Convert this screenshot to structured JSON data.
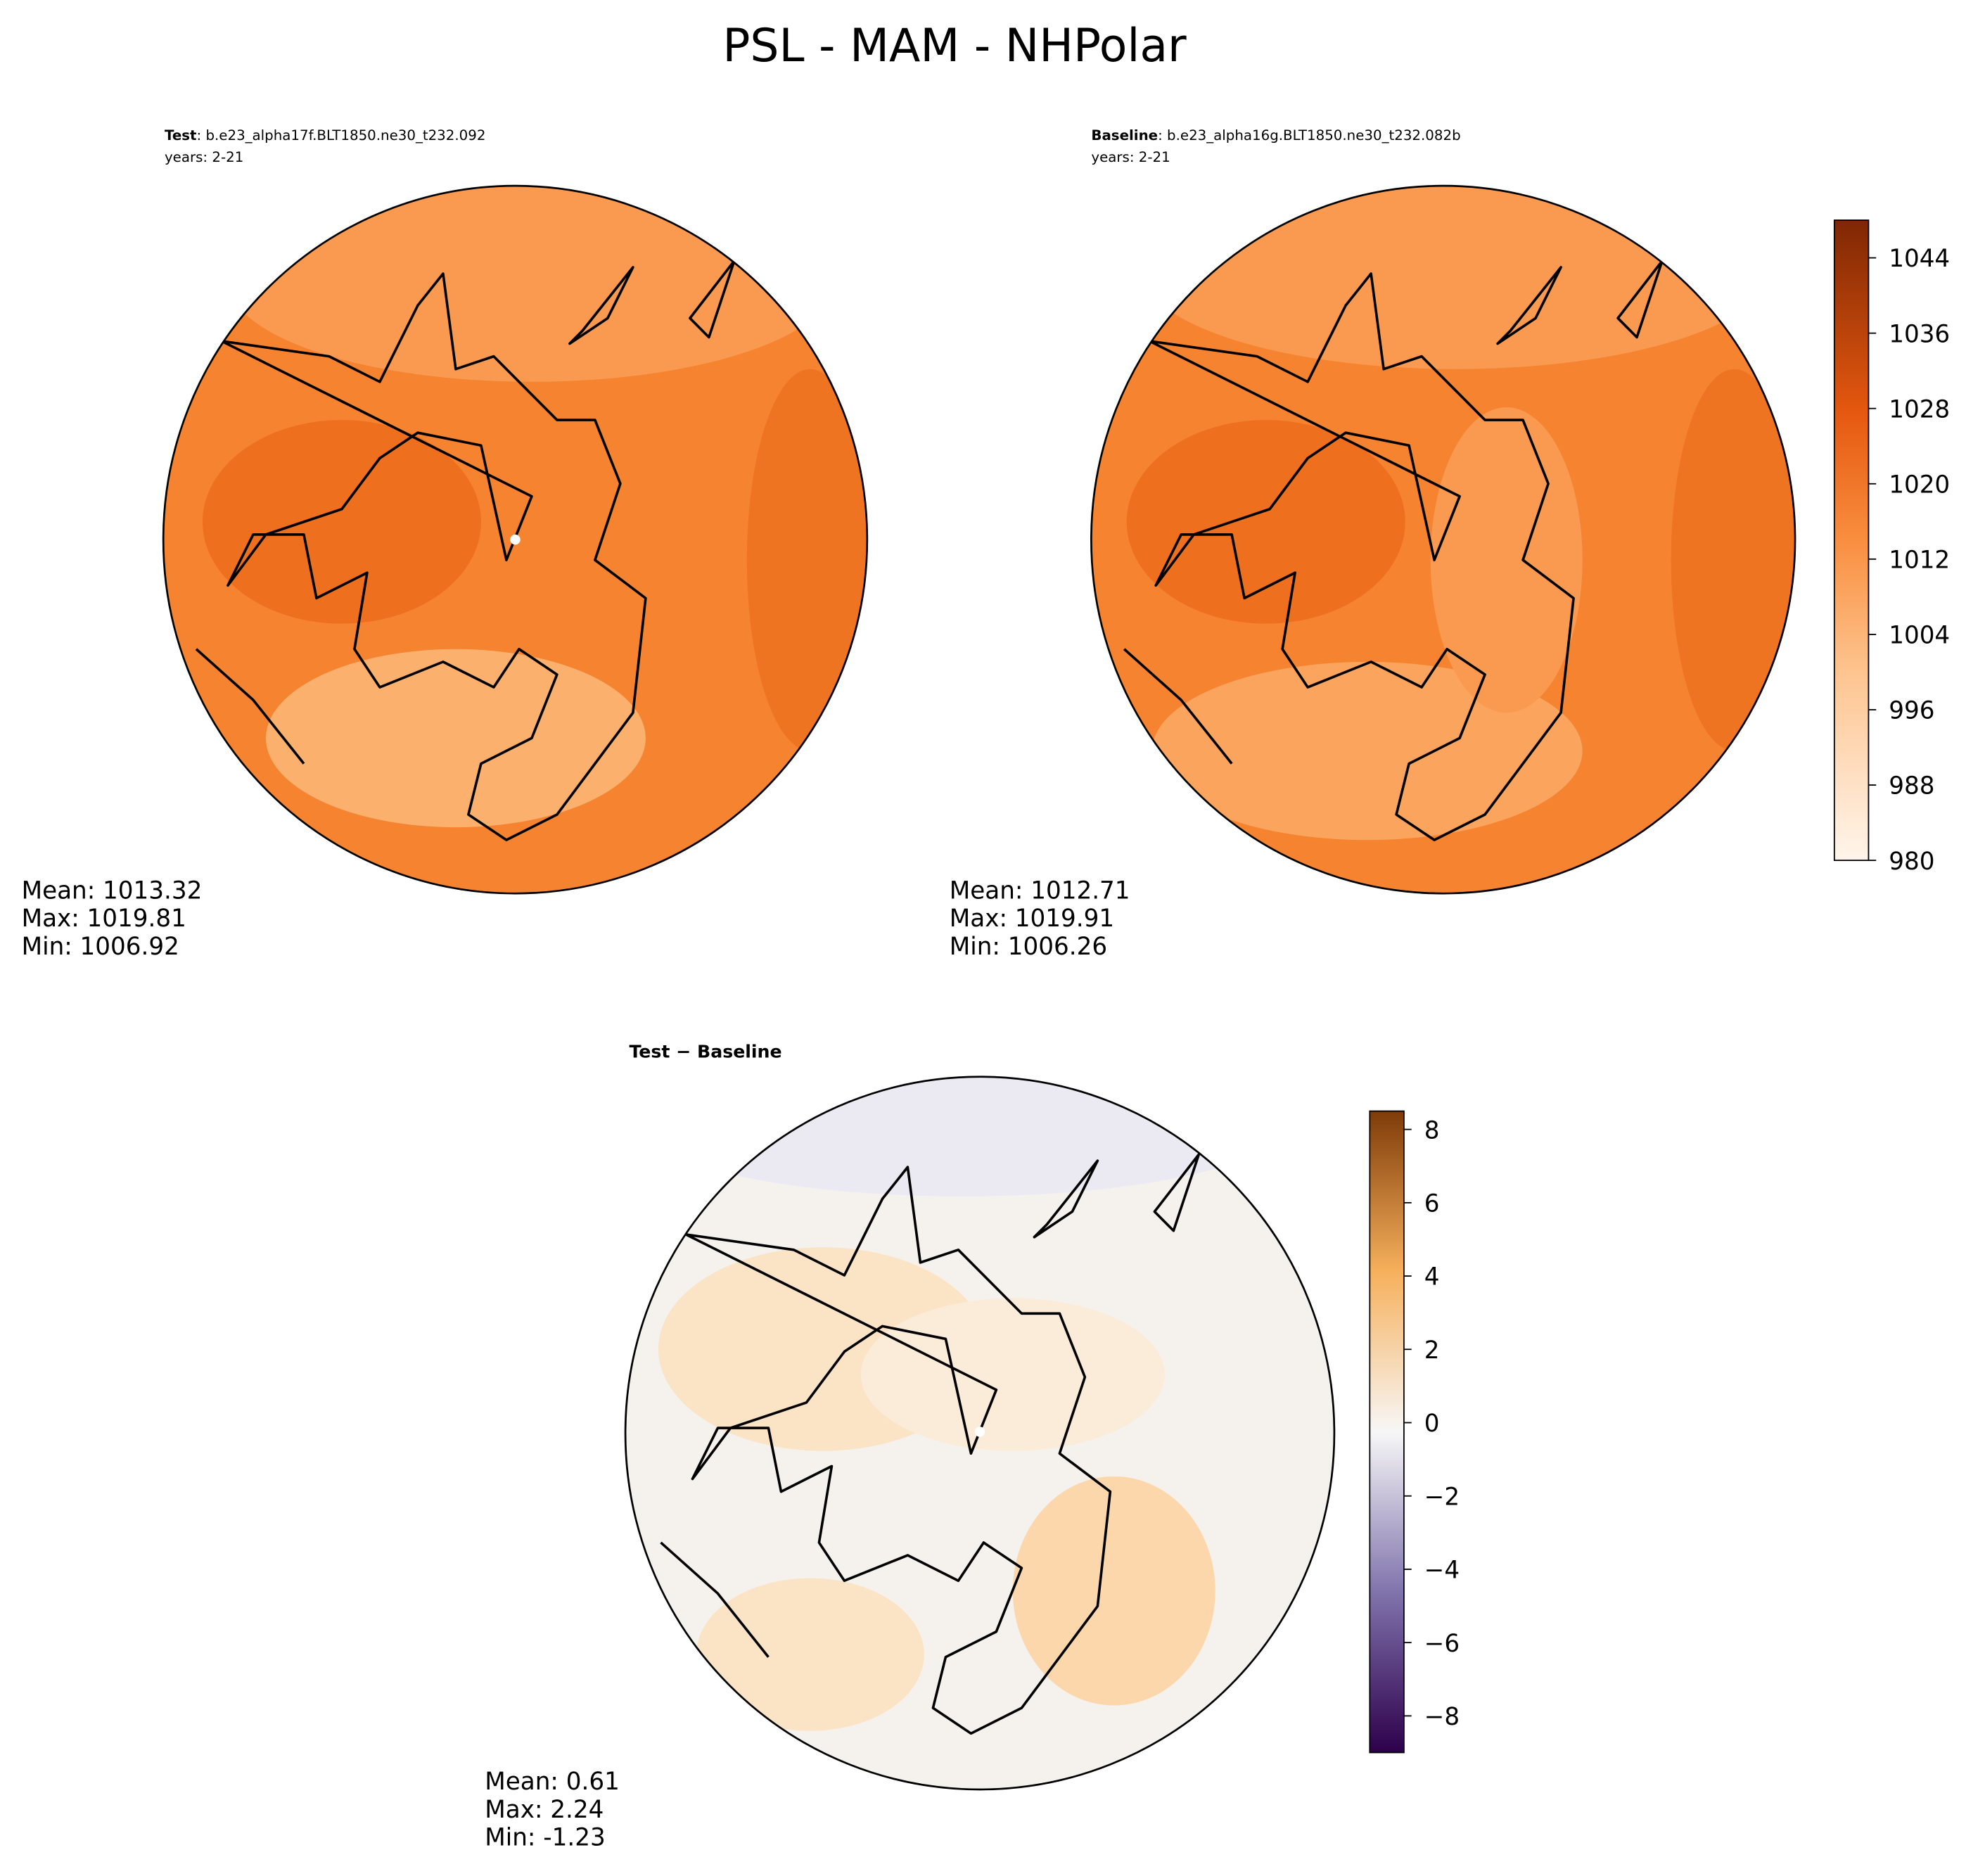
{
  "title": "PSL - MAM - NHPolar",
  "chart_data": [
    {
      "type": "map",
      "title_bold": "Test",
      "title_rest": ": b.e23_alpha17f.BLT1850.ne30_t232.092",
      "subtitle": "years: 2-21",
      "stats": [
        {
          "label": "Mean:",
          "value": 1013.32
        },
        {
          "label": "Max:",
          "value": 1019.81
        },
        {
          "label": "Min:",
          "value": 1006.92
        }
      ]
    },
    {
      "type": "map",
      "title_bold": "Baseline",
      "title_rest": ": b.e23_alpha16g.BLT1850.ne30_t232.082b",
      "subtitle": "years: 2-21",
      "stats": [
        {
          "label": "Mean:",
          "value": 1012.71
        },
        {
          "label": "Max:",
          "value": 1019.91
        },
        {
          "label": "Min:",
          "value": 1006.26
        }
      ]
    },
    {
      "type": "colorbar",
      "ylim": [
        980,
        1048
      ],
      "yticks": [
        980,
        988,
        996,
        1004,
        1012,
        1020,
        1028,
        1036,
        1044
      ]
    },
    {
      "type": "map",
      "title_bold": "Test − Baseline",
      "stats": [
        {
          "label": "Mean:",
          "value": 0.61
        },
        {
          "label": "Max:",
          "value": 2.24
        },
        {
          "label": "Min:",
          "value": -1.23
        }
      ]
    },
    {
      "type": "colorbar",
      "ylim": [
        -9,
        8.5
      ],
      "yticks": [
        {
          "value": -8,
          "label": "−8"
        },
        {
          "value": -6,
          "label": "−6"
        },
        {
          "value": -4,
          "label": "−4"
        },
        {
          "value": -2,
          "label": "−2"
        },
        0,
        2,
        4,
        6,
        8
      ]
    }
  ]
}
